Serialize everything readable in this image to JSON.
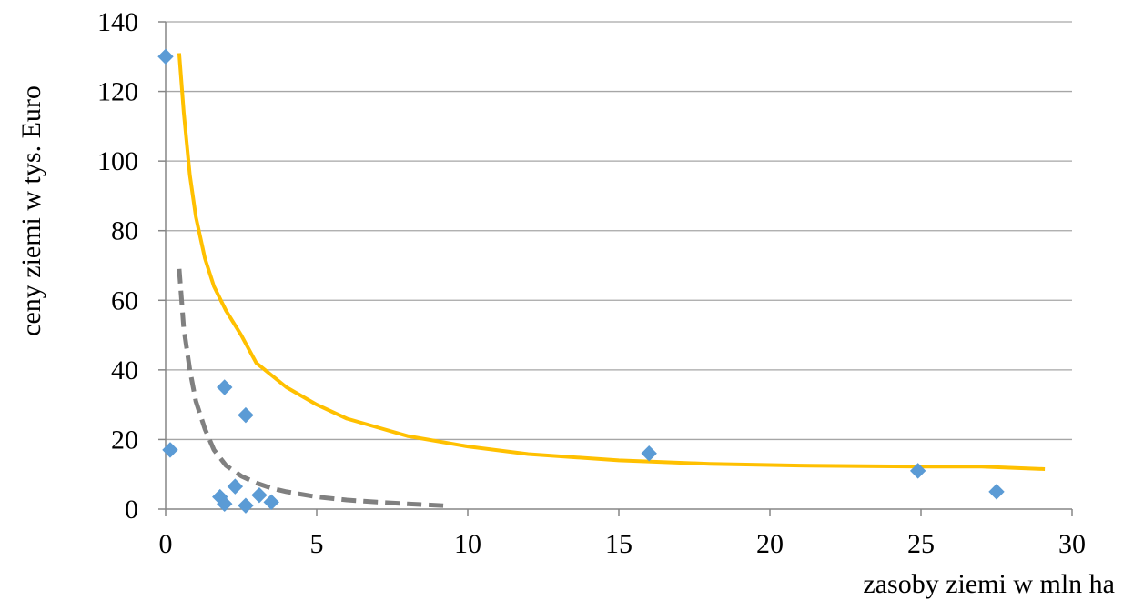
{
  "chart_data": {
    "type": "scatter",
    "title": "",
    "xlabel": "zasoby ziemi w  mln ha",
    "ylabel": "ceny ziemi w tys. Euro",
    "xlim": [
      0,
      30
    ],
    "ylim": [
      0,
      140
    ],
    "x_ticks": [
      0,
      5,
      10,
      15,
      20,
      25,
      30
    ],
    "y_ticks": [
      0,
      20,
      40,
      60,
      80,
      100,
      120,
      140
    ],
    "grid": "horizontal",
    "legend": "none",
    "series": [
      {
        "kind": "points",
        "marker": "diamond",
        "color": "#5b9bd5",
        "points": [
          {
            "x": 0.0,
            "y": 130
          },
          {
            "x": 0.15,
            "y": 17
          },
          {
            "x": 1.8,
            "y": 3.5
          },
          {
            "x": 1.95,
            "y": 35
          },
          {
            "x": 1.95,
            "y": 1.5
          },
          {
            "x": 2.3,
            "y": 6.5
          },
          {
            "x": 2.65,
            "y": 27
          },
          {
            "x": 2.65,
            "y": 1
          },
          {
            "x": 3.1,
            "y": 4
          },
          {
            "x": 3.5,
            "y": 2
          },
          {
            "x": 16.0,
            "y": 16
          },
          {
            "x": 24.9,
            "y": 11
          },
          {
            "x": 27.5,
            "y": 5
          }
        ]
      },
      {
        "kind": "trend",
        "style": "solid",
        "color": "#ffc000",
        "points": [
          {
            "x": 0.45,
            "y": 131
          },
          {
            "x": 0.6,
            "y": 114
          },
          {
            "x": 0.8,
            "y": 96
          },
          {
            "x": 1.0,
            "y": 84
          },
          {
            "x": 1.3,
            "y": 72
          },
          {
            "x": 1.6,
            "y": 64
          },
          {
            "x": 2.0,
            "y": 57
          },
          {
            "x": 2.5,
            "y": 50
          },
          {
            "x": 3.0,
            "y": 42
          },
          {
            "x": 4.0,
            "y": 35
          },
          {
            "x": 5.0,
            "y": 30
          },
          {
            "x": 6.0,
            "y": 26
          },
          {
            "x": 7.0,
            "y": 23.5
          },
          {
            "x": 8.0,
            "y": 21
          },
          {
            "x": 10.0,
            "y": 18
          },
          {
            "x": 12.0,
            "y": 15.8
          },
          {
            "x": 15.0,
            "y": 14
          },
          {
            "x": 18.0,
            "y": 13
          },
          {
            "x": 21.0,
            "y": 12.5
          },
          {
            "x": 25.0,
            "y": 12.2
          },
          {
            "x": 27.0,
            "y": 12.2
          },
          {
            "x": 29.1,
            "y": 11.5
          }
        ]
      },
      {
        "kind": "trend",
        "style": "dashed",
        "color": "#808080",
        "points": [
          {
            "x": 0.45,
            "y": 69
          },
          {
            "x": 0.6,
            "y": 52
          },
          {
            "x": 0.8,
            "y": 40
          },
          {
            "x": 1.0,
            "y": 31
          },
          {
            "x": 1.3,
            "y": 23
          },
          {
            "x": 1.6,
            "y": 17
          },
          {
            "x": 2.0,
            "y": 12.5
          },
          {
            "x": 2.5,
            "y": 9.5
          },
          {
            "x": 3.0,
            "y": 7.5
          },
          {
            "x": 3.5,
            "y": 6
          },
          {
            "x": 4.0,
            "y": 5
          },
          {
            "x": 5.0,
            "y": 3.5
          },
          {
            "x": 6.0,
            "y": 2.6
          },
          {
            "x": 7.0,
            "y": 2
          },
          {
            "x": 8.0,
            "y": 1.5
          },
          {
            "x": 9.2,
            "y": 1
          }
        ]
      }
    ],
    "colors": {
      "grid": "#a6a6a6",
      "axis": "#868686"
    }
  }
}
